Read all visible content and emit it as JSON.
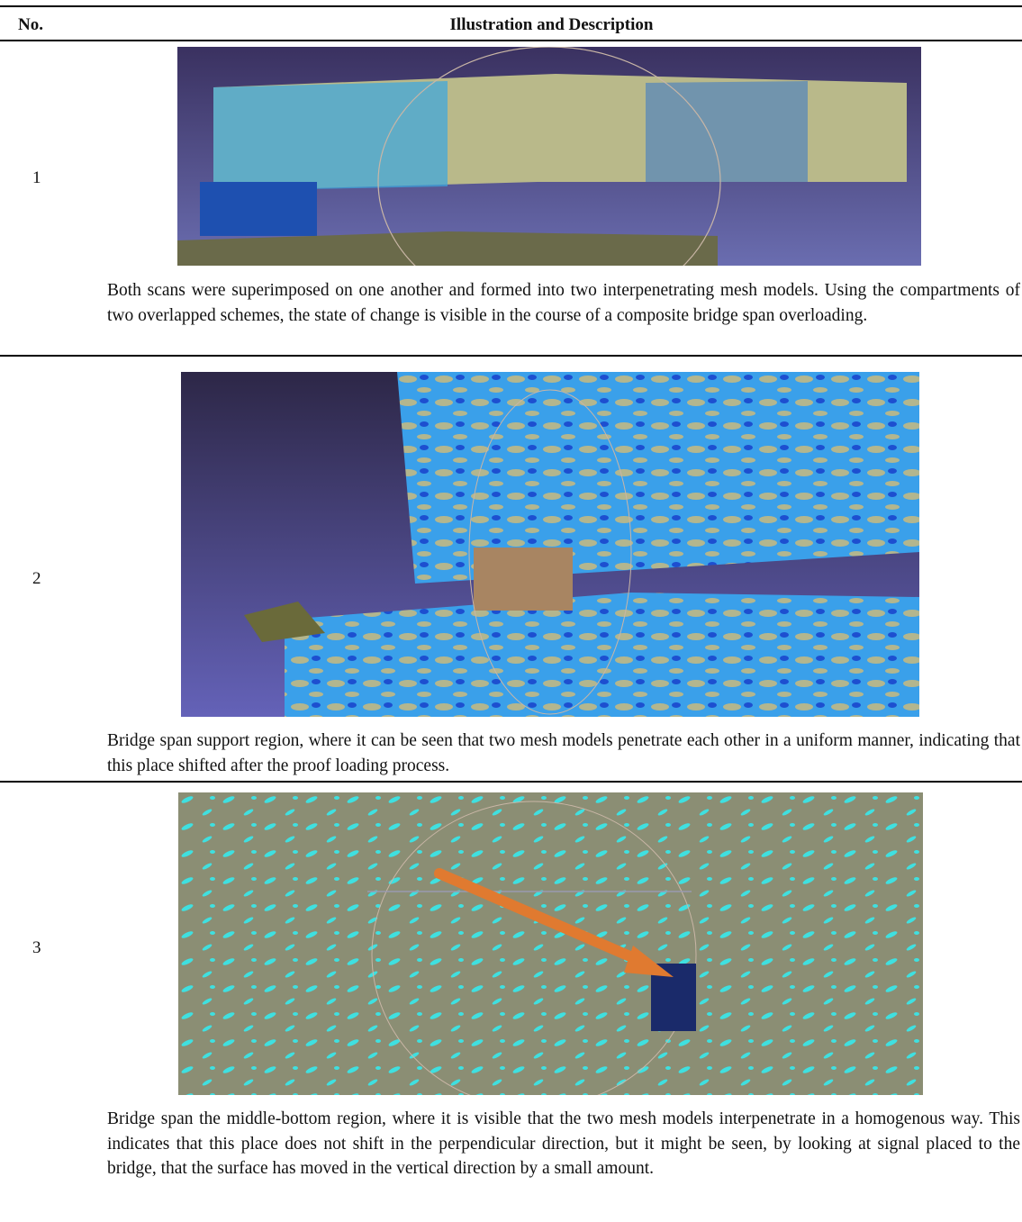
{
  "table": {
    "columns": [
      "No.",
      "Illustration and Description"
    ],
    "rows": [
      {
        "no": "1",
        "description": "Both scans were superimposed on one another and formed into two interpenetrating mesh models. Using the compartments of two overlapped schemes, the state of change is visible in the course of a composite bridge span overloading."
      },
      {
        "no": "2",
        "description": "Bridge span support region, where it can be seen that two mesh models penetrate each other in a uniform manner, indicating that this place shifted after the proof loading process."
      },
      {
        "no": "3",
        "description": "Bridge span the middle-bottom region, where it is visible that the two mesh models interpenetrate in a homogenous way. This indicates that this place does not shift in the perpendicular direction, but it might be seen, by looking at signal placed to the bridge, that the surface has moved in the vertical direction by a small amount."
      }
    ]
  }
}
